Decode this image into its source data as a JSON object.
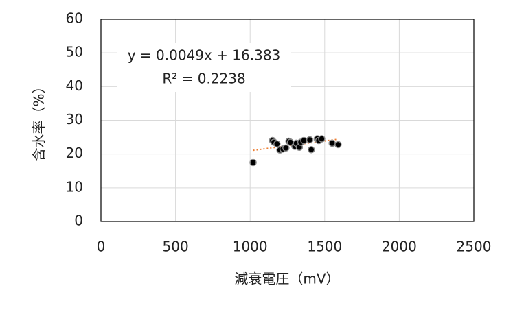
{
  "chart_data": {
    "type": "scatter",
    "xlabel": "減衰電圧（mV）",
    "ylabel": "含水率（%）",
    "xlim": [
      0,
      2500
    ],
    "xticks": [
      0,
      500,
      1000,
      1500,
      2000,
      2500
    ],
    "ylim": [
      0,
      60
    ],
    "yticks": [
      0,
      10,
      20,
      30,
      40,
      50,
      60
    ],
    "grid": true,
    "series": [
      {
        "color": "#000000",
        "x": [
          1020,
          1150,
          1160,
          1180,
          1200,
          1220,
          1240,
          1260,
          1270,
          1300,
          1310,
          1330,
          1340,
          1360,
          1400,
          1410,
          1450,
          1460,
          1480,
          1550,
          1590
        ],
        "values": [
          17.5,
          24.0,
          23.5,
          23.0,
          21.2,
          21.5,
          21.8,
          23.8,
          23.5,
          22.3,
          23.2,
          22.0,
          23.5,
          24.0,
          24.2,
          21.3,
          24.5,
          24.0,
          24.5,
          23.2,
          22.8
        ]
      }
    ],
    "trendline": {
      "color": "#ed7d31",
      "equation": "y = 0.0049x + 16.383",
      "r_squared": "R² = 0.2238"
    }
  }
}
